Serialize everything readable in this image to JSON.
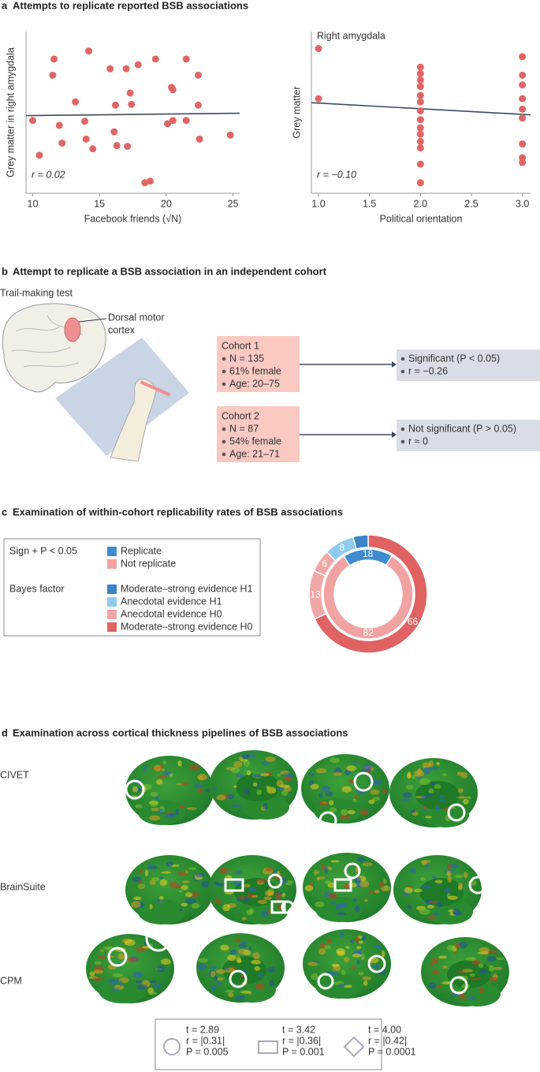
{
  "panels": [
    {
      "letter": "a",
      "title": "Attempts to replicate reported BSB associations"
    },
    {
      "letter": "b",
      "title": "Attempt to replicate a BSB association in an independent cohort"
    },
    {
      "letter": "c",
      "title": "Examination of within-cohort replicability rates of BSB associations"
    },
    {
      "letter": "d",
      "title": "Examination across cortical thickness pipelines of BSB associations"
    }
  ],
  "chart_data": [
    {
      "type": "scatter",
      "x_label": "Facebook friends (√N)",
      "y_label": "Grey matter in right amygdala",
      "annotation": "r = 0.02",
      "color": "#e06666",
      "x": [
        10.0,
        10.5,
        11.6,
        11.5,
        12.0,
        12.2,
        13.2,
        13.9,
        14.2,
        14.0,
        14.5,
        15.8,
        16.2,
        16.1,
        16.3,
        17.0,
        17.3,
        17.4,
        17.1,
        17.9,
        18.4,
        18.8,
        19.2,
        20.1,
        20.5,
        20.5,
        21.5,
        21.5,
        22.4,
        22.4,
        22.5,
        24.8,
        20.4
      ],
      "y": [
        90,
        47,
        166,
        146,
        84,
        62,
        113,
        89,
        176,
        67,
        55,
        154,
        109,
        76,
        59,
        154,
        124,
        110,
        58,
        159,
        13,
        15,
        166,
        86,
        128,
        90,
        166,
        90,
        146,
        109,
        67,
        72,
        131
      ],
      "xlim": [
        9.5,
        25.5
      ],
      "ylim": [
        0,
        200
      ],
      "xticks": [
        10,
        15,
        20,
        25
      ],
      "fit": {
        "x": [
          9.5,
          25.5
        ],
        "y": [
          96,
          99
        ],
        "color": "#3b4a63"
      }
    },
    {
      "type": "scatter",
      "title": "Right amygdala",
      "x_label": "Political orientation",
      "y_label": "Grey matter",
      "annotation": "r = −0.10",
      "color": "#e06666",
      "x": [
        1,
        1,
        2,
        2,
        2,
        2,
        2,
        2,
        2,
        2,
        2,
        2,
        2,
        2,
        2,
        2,
        3,
        3,
        3,
        3,
        3,
        3,
        3,
        3,
        3
      ],
      "y": [
        179,
        117,
        156,
        148,
        140,
        132,
        121,
        113,
        102,
        91,
        81,
        73,
        64,
        56,
        36,
        13,
        169,
        146,
        134,
        117,
        104,
        93,
        61,
        44,
        38
      ],
      "xlim": [
        0.93,
        3.08
      ],
      "ylim": [
        0,
        200
      ],
      "xticks": [
        {
          "value": 1,
          "label": "1.0"
        },
        {
          "value": 1.5,
          "label": "1.5"
        },
        {
          "value": 2,
          "label": "2.0"
        },
        {
          "value": 2.5,
          "label": "2.5"
        },
        {
          "value": 3,
          "label": "3.0"
        }
      ],
      "fit": {
        "x": [
          0.93,
          3.08
        ],
        "y": [
          112,
          97
        ],
        "color": "#3b4a63"
      }
    },
    {
      "type": "donut",
      "rings": [
        {
          "name": "Sign + P < 0.05",
          "values": [
            82,
            18
          ],
          "colors": [
            "#f2a2a2",
            "#3d8cd0"
          ],
          "start_angle": 32,
          "show_labels": [
            true,
            true
          ],
          "legend": [
            {
              "name": "Replicate",
              "color": "#3d8cd0"
            },
            {
              "name": "Not replicate",
              "color": "#f2a2a2"
            }
          ]
        },
        {
          "name": "Bayes factor",
          "values": [
            66,
            13,
            6,
            8,
            4
          ],
          "colors": [
            "#e06262",
            "#f2a7a7",
            "#f2a7a7",
            "#8ecbee",
            "#3a85c6"
          ],
          "start_angle": 0,
          "show_labels": [
            true,
            true,
            true,
            true,
            false
          ],
          "legend": [
            {
              "name": "Moderate–strong evidence H1",
              "color": "#3a85c6"
            },
            {
              "name": "Anecdotal evidence H1",
              "color": "#8ecbee"
            },
            {
              "name": "Anecdotal evidence H0",
              "color": "#f2a7a7"
            },
            {
              "name": "Moderate–strong evidence H0",
              "color": "#e06262"
            }
          ]
        }
      ]
    }
  ],
  "panel_b": {
    "test": "Trail-making test",
    "region": [
      "Dorsal motor",
      "cortex"
    ],
    "cohorts": [
      {
        "name": "Cohort 1",
        "items": [
          "N = 135",
          "61% female",
          "Age: 20–75"
        ],
        "result": [
          "Significant (P < 0.05)",
          "r = −0.26"
        ]
      },
      {
        "name": "Cohort 2",
        "items": [
          "N = 87",
          "54% female",
          "Age: 21–71"
        ],
        "result": [
          "Not significant (P > 0.05)",
          "r ≈ 0"
        ]
      }
    ]
  },
  "panel_d": {
    "pipelines": [
      "CIVET",
      "BrainSuite",
      "CPM"
    ],
    "legend": [
      [
        "t = 2.89",
        "r = |0.31|",
        "P = 0.005"
      ],
      [
        "t = 3.42",
        "r = |0.36|",
        "P = 0.001"
      ],
      [
        "t = 4.00",
        "r = |0.42|",
        "P = 0.0001"
      ]
    ]
  }
}
